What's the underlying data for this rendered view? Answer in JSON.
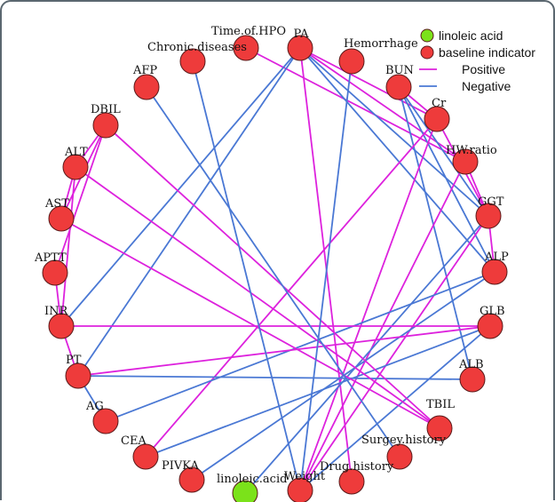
{
  "colors": {
    "linoleic": "#7be21a",
    "baseline": "#ee3b3b",
    "positive": "#dd22dd",
    "negative": "#4a78d4",
    "node_stroke": "#5a1a1a"
  },
  "legend": {
    "linoleic": "linoleic acid",
    "baseline": "baseline indicator",
    "positive": "Positive",
    "negative": "Negative"
  },
  "nodes": [
    {
      "id": "PA",
      "label": "PA",
      "group": "baseline"
    },
    {
      "id": "Hemorrhage",
      "label": "Hemorrhage",
      "group": "baseline"
    },
    {
      "id": "BUN",
      "label": "BUN",
      "group": "baseline"
    },
    {
      "id": "Cr",
      "label": "Cr",
      "group": "baseline"
    },
    {
      "id": "HW.ratio",
      "label": "HW.ratio",
      "group": "baseline"
    },
    {
      "id": "GGT",
      "label": "GGT",
      "group": "baseline"
    },
    {
      "id": "ALP",
      "label": "ALP",
      "group": "baseline"
    },
    {
      "id": "GLB",
      "label": "GLB",
      "group": "baseline"
    },
    {
      "id": "ALB",
      "label": "ALB",
      "group": "baseline"
    },
    {
      "id": "TBIL",
      "label": "TBIL",
      "group": "baseline"
    },
    {
      "id": "Surgey.history",
      "label": "Surgey.history",
      "group": "baseline"
    },
    {
      "id": "Drug.history",
      "label": "Drug.history",
      "group": "baseline"
    },
    {
      "id": "Weight",
      "label": "Weight",
      "group": "baseline"
    },
    {
      "id": "linoleic.acid",
      "label": "linoleic.acid",
      "group": "linoleic"
    },
    {
      "id": "PIVKA",
      "label": "PIVKA",
      "group": "baseline"
    },
    {
      "id": "CEA",
      "label": "CEA",
      "group": "baseline"
    },
    {
      "id": "AG",
      "label": "AG",
      "group": "baseline"
    },
    {
      "id": "PT",
      "label": "PT",
      "group": "baseline"
    },
    {
      "id": "INR",
      "label": "INR",
      "group": "baseline"
    },
    {
      "id": "APTT",
      "label": "APTT",
      "group": "baseline"
    },
    {
      "id": "AST",
      "label": "AST",
      "group": "baseline"
    },
    {
      "id": "ALT",
      "label": "ALT",
      "group": "baseline"
    },
    {
      "id": "DBIL",
      "label": "DBIL",
      "group": "baseline"
    },
    {
      "id": "AFP",
      "label": "AFP",
      "group": "baseline"
    },
    {
      "id": "Chronic.diseases",
      "label": "Chronic.diseases",
      "group": "baseline"
    },
    {
      "id": "Time.of.HPO",
      "label": "Time.of.HPO",
      "group": "baseline"
    }
  ],
  "edges": [
    {
      "source": "PA",
      "target": "Cr",
      "sign": "Positive"
    },
    {
      "source": "PA",
      "target": "HW.ratio",
      "sign": "Positive"
    },
    {
      "source": "PA",
      "target": "Drug.history",
      "sign": "Positive"
    },
    {
      "source": "Time.of.HPO",
      "target": "HW.ratio",
      "sign": "Positive"
    },
    {
      "source": "PA",
      "target": "GGT",
      "sign": "Negative"
    },
    {
      "source": "PA",
      "target": "ALP",
      "sign": "Negative"
    },
    {
      "source": "PA",
      "target": "PT",
      "sign": "Negative"
    },
    {
      "source": "PA",
      "target": "INR",
      "sign": "Negative"
    },
    {
      "source": "BUN",
      "target": "Cr",
      "sign": "Positive"
    },
    {
      "source": "BUN",
      "target": "GGT",
      "sign": "Negative"
    },
    {
      "source": "BUN",
      "target": "ALP",
      "sign": "Negative"
    },
    {
      "source": "BUN",
      "target": "ALB",
      "sign": "Negative"
    },
    {
      "source": "Cr",
      "target": "GGT",
      "sign": "Positive"
    },
    {
      "source": "Cr",
      "target": "CEA",
      "sign": "Positive"
    },
    {
      "source": "Cr",
      "target": "Weight",
      "sign": "Positive"
    },
    {
      "source": "HW.ratio",
      "target": "GGT",
      "sign": "Positive"
    },
    {
      "source": "HW.ratio",
      "target": "Weight",
      "sign": "Positive"
    },
    {
      "source": "GGT",
      "target": "ALP",
      "sign": "Positive"
    },
    {
      "source": "GGT",
      "target": "Weight",
      "sign": "Positive"
    },
    {
      "source": "GGT",
      "target": "linoleic.acid",
      "sign": "Negative"
    },
    {
      "source": "ALP",
      "target": "AG",
      "sign": "Negative"
    },
    {
      "source": "ALP",
      "target": "PIVKA",
      "sign": "Negative"
    },
    {
      "source": "GLB",
      "target": "INR",
      "sign": "Positive"
    },
    {
      "source": "GLB",
      "target": "PT",
      "sign": "Positive"
    },
    {
      "source": "GLB",
      "target": "Weight",
      "sign": "Negative"
    },
    {
      "source": "GLB",
      "target": "CEA",
      "sign": "Negative"
    },
    {
      "source": "ALB",
      "target": "PT",
      "sign": "Negative"
    },
    {
      "source": "TBIL",
      "target": "DBIL",
      "sign": "Positive"
    },
    {
      "source": "TBIL",
      "target": "ALT",
      "sign": "Positive"
    },
    {
      "source": "TBIL",
      "target": "AST",
      "sign": "Positive"
    },
    {
      "source": "Hemorrhage",
      "target": "Weight",
      "sign": "Negative"
    },
    {
      "source": "AFP",
      "target": "Surgey.history",
      "sign": "Negative"
    },
    {
      "source": "Chronic.diseases",
      "target": "Weight",
      "sign": "Negative"
    },
    {
      "source": "DBIL",
      "target": "ALT",
      "sign": "Positive"
    },
    {
      "source": "DBIL",
      "target": "AST",
      "sign": "Positive"
    },
    {
      "source": "DBIL",
      "target": "APTT",
      "sign": "Positive"
    },
    {
      "source": "ALT",
      "target": "AST",
      "sign": "Positive"
    },
    {
      "source": "APTT",
      "target": "INR",
      "sign": "Positive"
    },
    {
      "source": "INR",
      "target": "PT",
      "sign": "Positive"
    },
    {
      "source": "PT",
      "target": "AG",
      "sign": "Negative"
    },
    {
      "source": "ALT",
      "target": "INR",
      "sign": "Positive"
    }
  ]
}
